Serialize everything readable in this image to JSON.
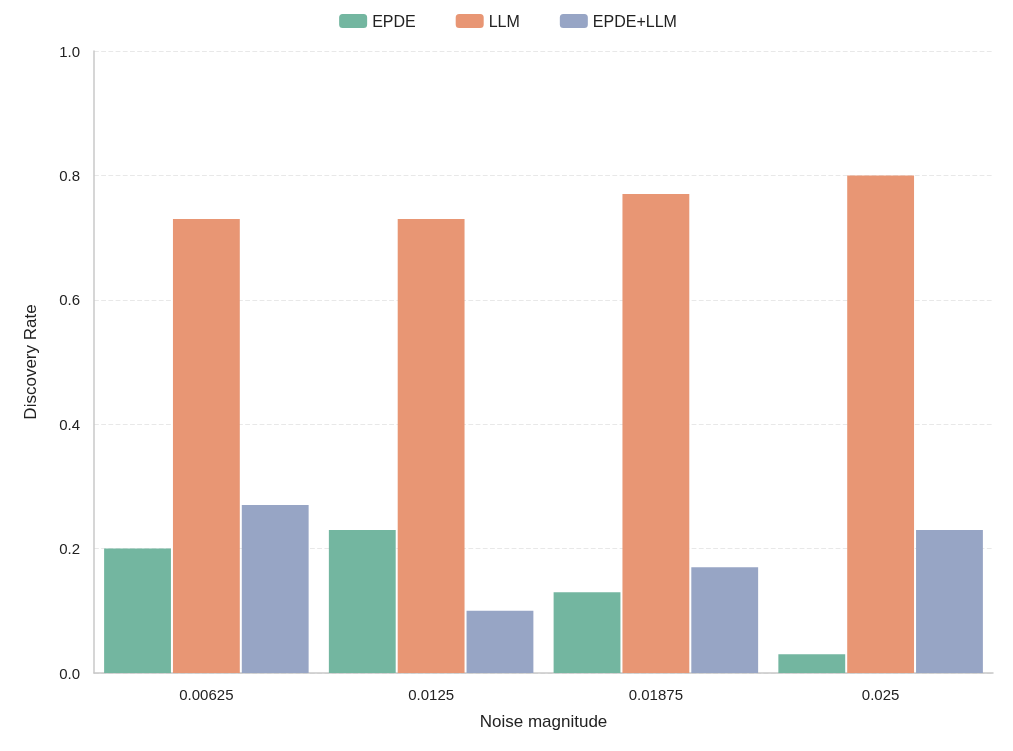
{
  "chart_data": {
    "type": "bar",
    "xlabel": "Noise magnitude",
    "ylabel": "Discovery Rate",
    "categories": [
      "0.00625",
      "0.0125",
      "0.01875",
      "0.025"
    ],
    "series": [
      {
        "name": "EPDE",
        "color": "#73b6a0",
        "values": [
          0.2,
          0.23,
          0.13,
          0.03
        ]
      },
      {
        "name": "LLM",
        "color": "#e89674",
        "values": [
          0.73,
          0.73,
          0.77,
          0.8
        ]
      },
      {
        "name": "EPDE+LLM",
        "color": "#97a5c5",
        "values": [
          0.27,
          0.1,
          0.17,
          0.23
        ]
      }
    ],
    "ylim": [
      0,
      1
    ],
    "yticks": [
      {
        "value": 0,
        "label": "0.0"
      },
      {
        "value": 0.2,
        "label": "0.2"
      },
      {
        "value": 0.4,
        "label": "0.4"
      },
      {
        "value": 0.6,
        "label": "0.6"
      },
      {
        "value": 0.8,
        "label": "0.8"
      },
      {
        "value": 1,
        "label": "1.0"
      }
    ],
    "grid": "y",
    "legend": "top"
  }
}
